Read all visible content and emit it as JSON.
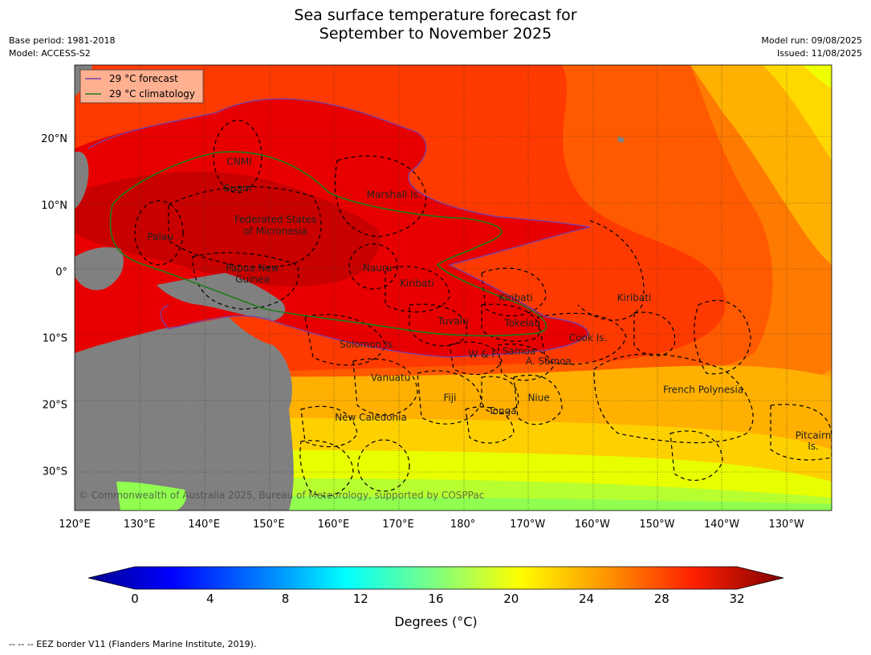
{
  "header": {
    "title_line1": "Sea surface temperature forecast for",
    "title_line2": "September to November 2025",
    "base_period": "Base period: 1981-2018",
    "model": "Model: ACCESS-S2",
    "model_run": "Model run: 09/08/2025",
    "issued": "Issued: 11/08/2025"
  },
  "legend": {
    "forecast": "29 °C  forecast",
    "climatology": "29 °C  climatology"
  },
  "colors": {
    "forecast_line": "#7b3fa0",
    "climatology_line": "#1e7d1e",
    "land": "#808080"
  },
  "axes": {
    "lon_labels": [
      "120°E",
      "130°E",
      "140°E",
      "150°E",
      "160°E",
      "170°E",
      "180°",
      "170°W",
      "160°W",
      "150°W",
      "140°W",
      "130°W"
    ],
    "lat_labels": [
      "20°N",
      "10°N",
      "0°",
      "10°S",
      "20°S",
      "30°S"
    ]
  },
  "places": [
    {
      "name": "CNMI",
      "lon": 145.0,
      "lat": 16.0
    },
    {
      "name": "Guam",
      "lon": 144.7,
      "lat": 12.0
    },
    {
      "name": "Marshall Is.",
      "lon": 168.5,
      "lat": 11.0
    },
    {
      "name": "Federated States",
      "lon": 150.5,
      "lat": 7.3
    },
    {
      "name": "of Micronesia",
      "lon": 150.5,
      "lat": 5.5
    },
    {
      "name": "Palau",
      "lon": 133.0,
      "lat": 4.7
    },
    {
      "name": "Papua New",
      "lon": 147.0,
      "lat": 0.0
    },
    {
      "name": "Guinea",
      "lon": 147.0,
      "lat": -1.7
    },
    {
      "name": "Nauru",
      "lon": 166.0,
      "lat": 0.0
    },
    {
      "name": "Kiribati",
      "lon": 172.0,
      "lat": -2.3
    },
    {
      "name": "Kiribati",
      "lon": -173.0,
      "lat": -4.5
    },
    {
      "name": "Kiribati",
      "lon": -155.0,
      "lat": -4.5
    },
    {
      "name": "Tuvalu",
      "lon": 177.5,
      "lat": -8.0
    },
    {
      "name": "Tokelau",
      "lon": -172.0,
      "lat": -8.3
    },
    {
      "name": "Solomon Is.",
      "lon": 164.5,
      "lat": -11.5
    },
    {
      "name": "Cook Is.",
      "lon": -162.0,
      "lat": -10.5
    },
    {
      "name": "W & F",
      "lon": -178.0,
      "lat": -13.0
    },
    {
      "name": "Samoa",
      "lon": -172.5,
      "lat": -12.5
    },
    {
      "name": "A. Samoa",
      "lon": -168.0,
      "lat": -14.0
    },
    {
      "name": "Vanuatu",
      "lon": 168.0,
      "lat": -16.5
    },
    {
      "name": "Fiji",
      "lon": 177.0,
      "lat": -19.5
    },
    {
      "name": "Niue",
      "lon": -169.5,
      "lat": -19.5
    },
    {
      "name": "Tonga",
      "lon": -175.0,
      "lat": -21.5
    },
    {
      "name": "French Polynesia",
      "lon": -144.5,
      "lat": -18.3
    },
    {
      "name": "New Caledonia",
      "lon": 165.0,
      "lat": -22.5
    },
    {
      "name": "Pitcairn",
      "lon": -127.8,
      "lat": -25.2
    },
    {
      "name": "Is.",
      "lon": -127.8,
      "lat": -26.8
    }
  ],
  "copyright": "© Commonwealth of Australia 2025, Bureau of Meteorology, supported by COSPPac",
  "colorbar": {
    "ticks": [
      "0",
      "4",
      "8",
      "12",
      "16",
      "20",
      "24",
      "28",
      "32"
    ],
    "label": "Degrees (°C)"
  },
  "footnote": "--  --  -- EEZ border V11 (Flanders Marine Institute, 2019)."
}
